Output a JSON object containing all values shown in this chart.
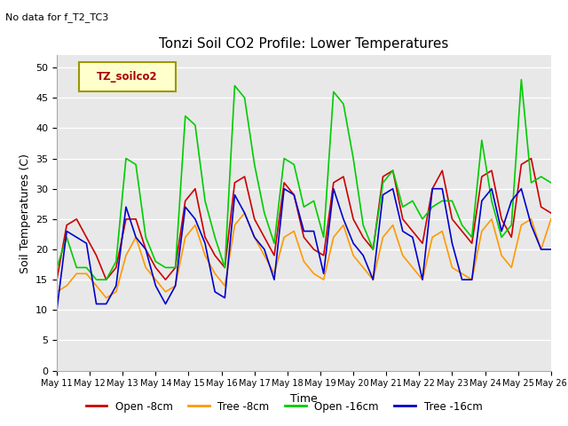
{
  "title": "Tonzi Soil CO2 Profile: Lower Temperatures",
  "subtitle": "No data for f_T2_TC3",
  "xlabel": "Time",
  "ylabel": "Soil Temperatures (C)",
  "legend_label": "TZ_soilco2",
  "ylim": [
    0,
    52
  ],
  "yticks": [
    0,
    5,
    10,
    15,
    20,
    25,
    30,
    35,
    40,
    45,
    50
  ],
  "bg_color": "#e8e8e8",
  "series": {
    "open_8cm": {
      "label": "Open -8cm",
      "color": "#cc0000",
      "x": [
        0,
        0.5,
        1,
        1.5,
        2,
        2.5,
        3,
        3.5,
        4,
        4.5,
        5,
        5.5,
        6,
        6.5,
        7,
        7.5,
        8,
        8.5,
        9,
        9.5,
        10,
        10.5,
        11,
        11.5,
        12,
        12.5,
        13,
        13.5,
        14,
        14.5,
        15,
        15.5,
        16,
        16.5,
        17,
        17.5,
        18,
        18.5,
        19,
        19.5,
        20,
        20.5,
        21,
        21.5,
        22,
        22.5,
        23,
        23.5,
        24,
        24.5,
        25
      ],
      "y": [
        15,
        24,
        25,
        22,
        19,
        15,
        17,
        25,
        25,
        20,
        17,
        15,
        17,
        28,
        30,
        22,
        19,
        17,
        31,
        32,
        25,
        22,
        19,
        31,
        29,
        22,
        20,
        19,
        31,
        32,
        25,
        22,
        20,
        32,
        33,
        25,
        23,
        21,
        30,
        33,
        25,
        23,
        21,
        32,
        33,
        25,
        22,
        34,
        35,
        27,
        26
      ]
    },
    "tree_8cm": {
      "label": "Tree -8cm",
      "color": "#ff9900",
      "x": [
        0,
        0.5,
        1,
        1.5,
        2,
        2.5,
        3,
        3.5,
        4,
        4.5,
        5,
        5.5,
        6,
        6.5,
        7,
        7.5,
        8,
        8.5,
        9,
        9.5,
        10,
        10.5,
        11,
        11.5,
        12,
        12.5,
        13,
        13.5,
        14,
        14.5,
        15,
        15.5,
        16,
        16.5,
        17,
        17.5,
        18,
        18.5,
        19,
        19.5,
        20,
        20.5,
        21,
        21.5,
        22,
        22.5,
        23,
        23.5,
        24,
        24.5,
        25
      ],
      "y": [
        13,
        14,
        16,
        16,
        14,
        12,
        13,
        19,
        22,
        17,
        15,
        13,
        14,
        22,
        24,
        19,
        16,
        14,
        24,
        26,
        22,
        19,
        16,
        22,
        23,
        18,
        16,
        15,
        22,
        24,
        19,
        17,
        15,
        22,
        24,
        19,
        17,
        15,
        22,
        23,
        17,
        16,
        15,
        23,
        25,
        19,
        17,
        24,
        25,
        20,
        25
      ]
    },
    "open_16cm": {
      "label": "Open -16cm",
      "color": "#00cc00",
      "x": [
        0,
        0.5,
        1,
        1.5,
        2,
        2.5,
        3,
        3.5,
        4,
        4.5,
        5,
        5.5,
        6,
        6.5,
        7,
        7.5,
        8,
        8.5,
        9,
        9.5,
        10,
        10.5,
        11,
        11.5,
        12,
        12.5,
        13,
        13.5,
        14,
        14.5,
        15,
        15.5,
        16,
        16.5,
        17,
        17.5,
        18,
        18.5,
        19,
        19.5,
        20,
        20.5,
        21,
        21.5,
        22,
        22.5,
        23,
        23.5,
        24,
        24.5,
        25
      ],
      "y": [
        17,
        22,
        17,
        17,
        15,
        15,
        18,
        35,
        34,
        22,
        18,
        17,
        17,
        42,
        40.5,
        28,
        22,
        17,
        47,
        45,
        34,
        26,
        21,
        35,
        34,
        27,
        28,
        22,
        46,
        44,
        35,
        24,
        20,
        31,
        33,
        27,
        28,
        25,
        27,
        28,
        28,
        24,
        22,
        38,
        28,
        22,
        24,
        48,
        31,
        32,
        31
      ]
    },
    "tree_16cm": {
      "label": "Tree -16cm",
      "color": "#0000cc",
      "x": [
        0,
        0.5,
        1,
        1.5,
        2,
        2.5,
        3,
        3.5,
        4,
        4.5,
        5,
        5.5,
        6,
        6.5,
        7,
        7.5,
        8,
        8.5,
        9,
        9.5,
        10,
        10.5,
        11,
        11.5,
        12,
        12.5,
        13,
        13.5,
        14,
        14.5,
        15,
        15.5,
        16,
        16.5,
        17,
        17.5,
        18,
        18.5,
        19,
        19.5,
        20,
        20.5,
        21,
        21.5,
        22,
        22.5,
        23,
        23.5,
        24,
        24.5,
        25
      ],
      "y": [
        10,
        23,
        22,
        21,
        11,
        11,
        14,
        27,
        22,
        20,
        14,
        11,
        14,
        27,
        25,
        21,
        13,
        12,
        29,
        26,
        22,
        20,
        15,
        30,
        29,
        23,
        23,
        16,
        30,
        25,
        21,
        19,
        15,
        29,
        30,
        23,
        22,
        15,
        30,
        30,
        21,
        15,
        15,
        28,
        30,
        23,
        28,
        30,
        24,
        20,
        20
      ]
    }
  },
  "x_tick_labels": [
    "May 11",
    "May 12",
    "May 13",
    "May 14",
    "May 15",
    "May 16",
    "May 17",
    "May 18",
    "May 19",
    "May 20",
    "May 21",
    "May 22",
    "May 23",
    "May 24",
    "May 25",
    "May 26"
  ],
  "x_tick_positions": [
    0,
    1,
    2,
    3,
    4,
    5,
    6,
    7,
    8,
    9,
    10,
    11,
    12,
    13,
    14,
    15
  ]
}
